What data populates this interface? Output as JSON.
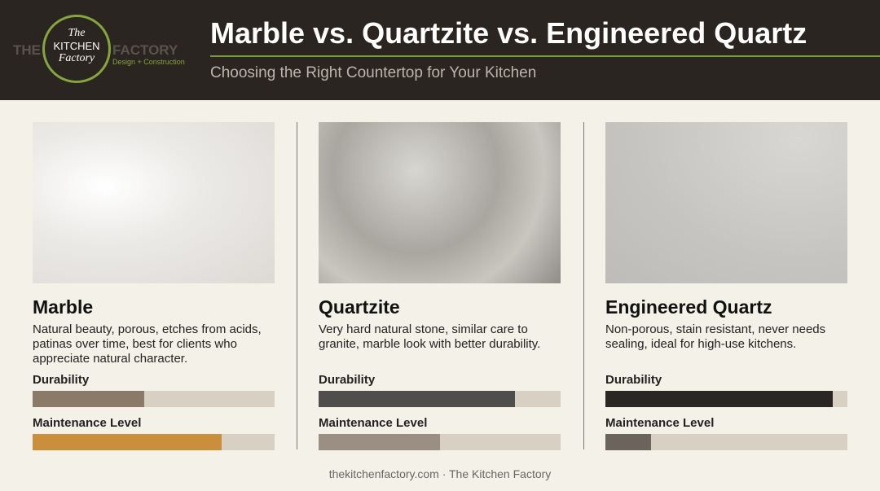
{
  "header": {
    "logo": {
      "ring_top": "The",
      "ring_middle": "KITCHEN",
      "ring_bottom": "Factory",
      "left": "THE",
      "right": "FACTORY",
      "tagline": "Design + Construction"
    },
    "title": "Marble vs. Quartzite vs. Engineered Quartz",
    "subtitle": "Choosing the Right Countertop for Your Kitchen"
  },
  "bar_range": [
    0,
    100
  ],
  "track_color": "#d7d0c3",
  "cards": [
    {
      "name": "Marble",
      "description": "Natural beauty, porous, etches from acids, patinas over time, best for clients who appreciate natural character.",
      "metrics": [
        {
          "label": "Durability",
          "value": 46,
          "color": "#8b7a68"
        },
        {
          "label": "Maintenance Level",
          "value": 78,
          "color": "#c98f3a"
        }
      ]
    },
    {
      "name": "Quartzite",
      "description": "Very hard natural stone, similar care to granite, marble look with better durability.",
      "metrics": [
        {
          "label": "Durability",
          "value": 81,
          "color": "#4f4e4c"
        },
        {
          "label": "Maintenance Level",
          "value": 50,
          "color": "#9a8f82"
        }
      ]
    },
    {
      "name": "Engineered Quartz",
      "description": "Non-porous, stain resistant, never needs sealing, ideal for high-use kitchens.",
      "metrics": [
        {
          "label": "Durability",
          "value": 94,
          "color": "#2a2623"
        },
        {
          "label": "Maintenance Level",
          "value": 19,
          "color": "#6b645c"
        }
      ]
    }
  ],
  "footer": "thekitchenfactory.com · The Kitchen Factory"
}
